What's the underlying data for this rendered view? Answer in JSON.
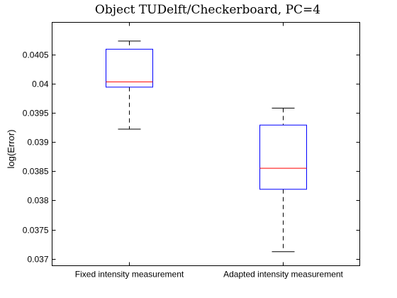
{
  "chart_data": {
    "type": "box",
    "title": "Object TUDelft/Checkerboard, PC=4",
    "xlabel": "",
    "ylabel": "log(Error)",
    "ylim": [
      0.03688,
      0.04105
    ],
    "yticks": [
      0.037,
      0.0375,
      0.038,
      0.0385,
      0.039,
      0.0395,
      0.04,
      0.0405
    ],
    "ytick_labels": [
      "0.037",
      "0.0375",
      "0.038",
      "0.0385",
      "0.039",
      "0.0395",
      "0.04",
      "0.0405"
    ],
    "categories": [
      "Fixed intensity measurement",
      "Adapted intensity measurement"
    ],
    "boxes": [
      {
        "whisker_low": 0.03922,
        "q1": 0.03994,
        "median": 0.04003,
        "q3": 0.04059,
        "whisker_high": 0.04073
      },
      {
        "whisker_low": 0.03712,
        "q1": 0.03819,
        "median": 0.03855,
        "q3": 0.03929,
        "whisker_high": 0.03958
      }
    ],
    "colors": {
      "box": "#0000ff",
      "median": "#ff0000",
      "whisker": "#000000",
      "axis": "#000000"
    },
    "grid": false
  }
}
